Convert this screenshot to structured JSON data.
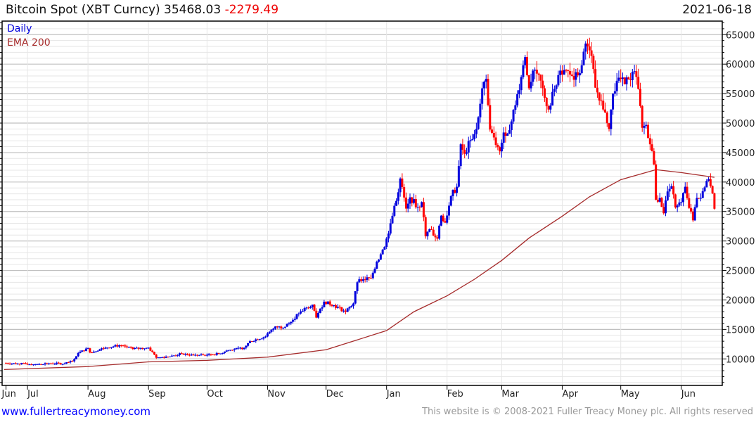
{
  "header": {
    "title": "Bitcoin Spot (XBT Curncy)",
    "last": "35468.03",
    "change": "-2279.49",
    "date": "2021-06-18"
  },
  "footer": {
    "link": "www.fullertreacymoney.com",
    "copyright": "This website is © 2008-2021 Fuller Treacy Money plc. All rights reserved"
  },
  "colors": {
    "up": "#0000dd",
    "down": "#ff0000",
    "ema": "#a52a2a",
    "grid_major": "#c0c0c0",
    "grid_minor": "#e6e6e6"
  },
  "chart_data": {
    "type": "candlestick",
    "title": "Bitcoin Spot (XBT Curncy)",
    "legend": [
      {
        "label": "Daily",
        "color": "#0000dd"
      },
      {
        "label": "EMA 200",
        "color": "#a52a2a"
      }
    ],
    "legend_position": "top-left",
    "ylim": [
      5500,
      67300
    ],
    "xlim": [
      "2020-06-18",
      "2021-06-22"
    ],
    "y_ticks": [
      10000,
      15000,
      20000,
      25000,
      30000,
      35000,
      40000,
      45000,
      50000,
      55000,
      60000,
      65000
    ],
    "x_ticks": [
      {
        "label": "Jun",
        "date": "2020-06-20"
      },
      {
        "label": "Jul",
        "date": "2020-07-01"
      },
      {
        "label": "Aug",
        "date": "2020-08-01"
      },
      {
        "label": "Sep",
        "date": "2020-09-01"
      },
      {
        "label": "Oct",
        "date": "2020-10-01"
      },
      {
        "label": "Nov",
        "date": "2020-11-01"
      },
      {
        "label": "Dec",
        "date": "2020-12-01"
      },
      {
        "label": "Jan",
        "date": "2021-01-01"
      },
      {
        "label": "Feb",
        "date": "2021-02-01"
      },
      {
        "label": "Mar",
        "date": "2021-03-01"
      },
      {
        "label": "Apr",
        "date": "2021-04-01"
      },
      {
        "label": "May",
        "date": "2021-05-01"
      },
      {
        "label": "Jun",
        "date": "2021-06-01"
      }
    ],
    "closes": [
      [
        "2020-06-19",
        9300
      ],
      [
        "2020-06-26",
        9200
      ],
      [
        "2020-07-05",
        9100
      ],
      [
        "2020-07-12",
        9250
      ],
      [
        "2020-07-20",
        9200
      ],
      [
        "2020-07-24",
        9600
      ],
      [
        "2020-07-27",
        11000
      ],
      [
        "2020-08-01",
        11800
      ],
      [
        "2020-08-02",
        11100
      ],
      [
        "2020-08-10",
        11900
      ],
      [
        "2020-08-17",
        12300
      ],
      [
        "2020-08-24",
        11700
      ],
      [
        "2020-09-01",
        11900
      ],
      [
        "2020-09-05",
        10200
      ],
      [
        "2020-09-12",
        10400
      ],
      [
        "2020-09-18",
        10900
      ],
      [
        "2020-09-24",
        10600
      ],
      [
        "2020-10-01",
        10700
      ],
      [
        "2020-10-08",
        10900
      ],
      [
        "2020-10-12",
        11500
      ],
      [
        "2020-10-20",
        11900
      ],
      [
        "2020-10-23",
        13000
      ],
      [
        "2020-10-31",
        13800
      ],
      [
        "2020-11-05",
        15500
      ],
      [
        "2020-11-09",
        15300
      ],
      [
        "2020-11-13",
        16300
      ],
      [
        "2020-11-17",
        17700
      ],
      [
        "2020-11-21",
        18700
      ],
      [
        "2020-11-24",
        19200
      ],
      [
        "2020-11-26",
        17000
      ],
      [
        "2020-11-30",
        19700
      ],
      [
        "2020-12-05",
        19100
      ],
      [
        "2020-12-11",
        18000
      ],
      [
        "2020-12-15",
        19400
      ],
      [
        "2020-12-17",
        23000
      ],
      [
        "2020-12-20",
        23500
      ],
      [
        "2020-12-24",
        23700
      ],
      [
        "2020-12-27",
        26500
      ],
      [
        "2020-12-31",
        29000
      ],
      [
        "2021-01-03",
        33000
      ],
      [
        "2021-01-06",
        36800
      ],
      [
        "2021-01-08",
        40600
      ],
      [
        "2021-01-11",
        35500
      ],
      [
        "2021-01-13",
        37400
      ],
      [
        "2021-01-17",
        35800
      ],
      [
        "2021-01-19",
        36600
      ],
      [
        "2021-01-21",
        30800
      ],
      [
        "2021-01-23",
        32000
      ],
      [
        "2021-01-27",
        30400
      ],
      [
        "2021-01-29",
        34300
      ],
      [
        "2021-01-31",
        33100
      ],
      [
        "2021-02-03",
        37600
      ],
      [
        "2021-02-06",
        39200
      ],
      [
        "2021-02-08",
        46400
      ],
      [
        "2021-02-10",
        44800
      ],
      [
        "2021-02-13",
        47100
      ],
      [
        "2021-02-16",
        49000
      ],
      [
        "2021-02-19",
        55900
      ],
      [
        "2021-02-21",
        57500
      ],
      [
        "2021-02-23",
        48900
      ],
      [
        "2021-02-26",
        46300
      ],
      [
        "2021-02-28",
        45200
      ],
      [
        "2021-03-02",
        48400
      ],
      [
        "2021-03-05",
        48800
      ],
      [
        "2021-03-09",
        54900
      ],
      [
        "2021-03-11",
        57800
      ],
      [
        "2021-03-13",
        61200
      ],
      [
        "2021-03-15",
        55900
      ],
      [
        "2021-03-17",
        58900
      ],
      [
        "2021-03-20",
        58200
      ],
      [
        "2021-03-23",
        54300
      ],
      [
        "2021-03-25",
        52300
      ],
      [
        "2021-03-28",
        55800
      ],
      [
        "2021-03-31",
        58900
      ],
      [
        "2021-04-02",
        59000
      ],
      [
        "2021-04-06",
        58000
      ],
      [
        "2021-04-09",
        58100
      ],
      [
        "2021-04-11",
        59800
      ],
      [
        "2021-04-13",
        63500
      ],
      [
        "2021-04-14",
        63000
      ],
      [
        "2021-04-16",
        61400
      ],
      [
        "2021-04-18",
        56000
      ],
      [
        "2021-04-21",
        53800
      ],
      [
        "2021-04-23",
        51800
      ],
      [
        "2021-04-25",
        49000
      ],
      [
        "2021-04-27",
        55000
      ],
      [
        "2021-04-30",
        57700
      ],
      [
        "2021-05-03",
        56600
      ],
      [
        "2021-05-05",
        57400
      ],
      [
        "2021-05-08",
        58800
      ],
      [
        "2021-05-10",
        55800
      ],
      [
        "2021-05-12",
        49200
      ],
      [
        "2021-05-14",
        49700
      ],
      [
        "2021-05-16",
        46400
      ],
      [
        "2021-05-18",
        43000
      ],
      [
        "2021-05-19",
        37000
      ],
      [
        "2021-05-21",
        37300
      ],
      [
        "2021-05-23",
        34700
      ],
      [
        "2021-05-25",
        38400
      ],
      [
        "2021-05-27",
        39300
      ],
      [
        "2021-05-29",
        35700
      ],
      [
        "2021-06-01",
        36600
      ],
      [
        "2021-06-03",
        39200
      ],
      [
        "2021-06-05",
        35600
      ],
      [
        "2021-06-07",
        33500
      ],
      [
        "2021-06-09",
        37300
      ],
      [
        "2021-06-11",
        37300
      ],
      [
        "2021-06-13",
        39100
      ],
      [
        "2021-06-15",
        40500
      ],
      [
        "2021-06-17",
        38100
      ],
      [
        "2021-06-18",
        35468
      ]
    ],
    "ema_200": [
      [
        "2020-06-19",
        8200
      ],
      [
        "2020-08-01",
        8700
      ],
      [
        "2020-09-01",
        9500
      ],
      [
        "2020-10-01",
        9750
      ],
      [
        "2020-11-01",
        10300
      ],
      [
        "2020-12-01",
        11550
      ],
      [
        "2021-01-01",
        14800
      ],
      [
        "2021-01-15",
        18000
      ],
      [
        "2021-02-01",
        20700
      ],
      [
        "2021-02-15",
        23500
      ],
      [
        "2021-03-01",
        26700
      ],
      [
        "2021-03-15",
        30500
      ],
      [
        "2021-04-01",
        34200
      ],
      [
        "2021-04-15",
        37500
      ],
      [
        "2021-05-01",
        40400
      ],
      [
        "2021-05-19",
        42100
      ],
      [
        "2021-06-01",
        41600
      ],
      [
        "2021-06-18",
        40800
      ]
    ]
  }
}
